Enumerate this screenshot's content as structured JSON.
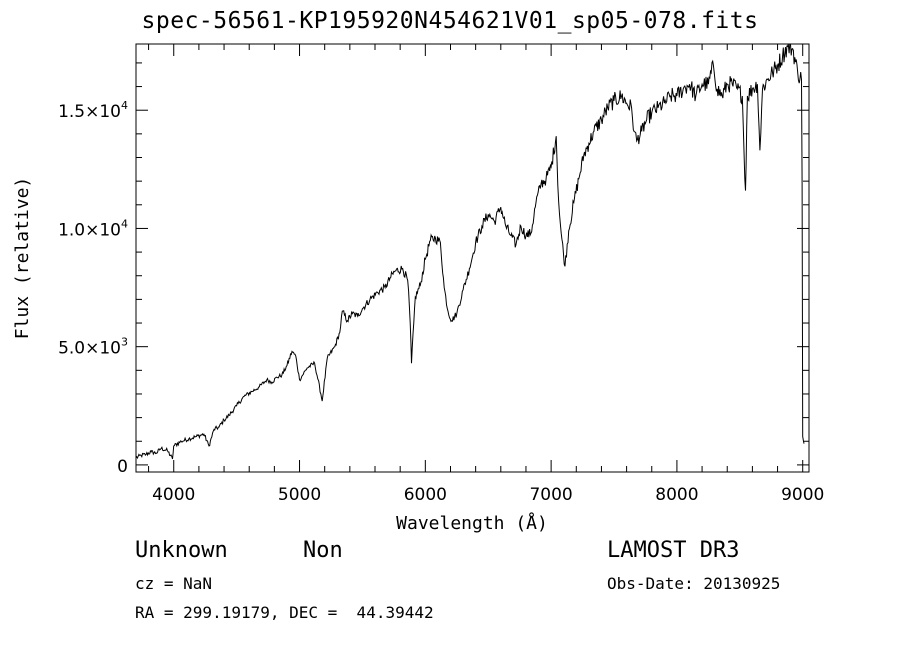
{
  "chart_data": {
    "type": "line",
    "title": "spec-56561-KP195920N454621V01_sp05-078.fits",
    "xlabel": "Wavelength (Å)",
    "ylabel": "Flux (relative)",
    "xlim": [
      3700,
      9050
    ],
    "ylim": [
      -300,
      17800
    ],
    "xticks": [
      4000,
      5000,
      6000,
      7000,
      8000,
      9000
    ],
    "yticks": [
      {
        "value": 0,
        "label": "0"
      },
      {
        "value": 5000,
        "label": "5.0×10",
        "exp": "3"
      },
      {
        "value": 10000,
        "label": "1.0×10",
        "exp": "4"
      },
      {
        "value": 15000,
        "label": "1.5×10",
        "exp": "4"
      }
    ],
    "series": [
      {
        "name": "flux",
        "points": [
          [
            3700,
            300
          ],
          [
            3740,
            400
          ],
          [
            3780,
            450
          ],
          [
            3820,
            550
          ],
          [
            3860,
            500
          ],
          [
            3900,
            700
          ],
          [
            3950,
            600
          ],
          [
            3990,
            250
          ],
          [
            4000,
            800
          ],
          [
            4060,
            1000
          ],
          [
            4120,
            1100
          ],
          [
            4180,
            1200
          ],
          [
            4240,
            1300
          ],
          [
            4280,
            800
          ],
          [
            4320,
            1500
          ],
          [
            4360,
            1600
          ],
          [
            4400,
            1900
          ],
          [
            4440,
            2100
          ],
          [
            4500,
            2500
          ],
          [
            4560,
            2900
          ],
          [
            4620,
            3100
          ],
          [
            4680,
            3300
          ],
          [
            4740,
            3600
          ],
          [
            4780,
            3500
          ],
          [
            4820,
            3700
          ],
          [
            4860,
            3800
          ],
          [
            4900,
            4200
          ],
          [
            4940,
            4800
          ],
          [
            4970,
            4600
          ],
          [
            5000,
            3600
          ],
          [
            5060,
            4100
          ],
          [
            5120,
            4300
          ],
          [
            5170,
            3000
          ],
          [
            5180,
            2700
          ],
          [
            5220,
            4500
          ],
          [
            5280,
            5000
          ],
          [
            5320,
            5600
          ],
          [
            5340,
            6500
          ],
          [
            5380,
            6100
          ],
          [
            5420,
            6400
          ],
          [
            5460,
            6300
          ],
          [
            5500,
            6600
          ],
          [
            5560,
            7000
          ],
          [
            5620,
            7300
          ],
          [
            5680,
            7500
          ],
          [
            5720,
            7900
          ],
          [
            5760,
            8200
          ],
          [
            5820,
            8300
          ],
          [
            5860,
            7800
          ],
          [
            5880,
            6000
          ],
          [
            5890,
            4300
          ],
          [
            5920,
            7100
          ],
          [
            5960,
            7600
          ],
          [
            6000,
            8700
          ],
          [
            6040,
            9500
          ],
          [
            6080,
            9600
          ],
          [
            6120,
            9400
          ],
          [
            6150,
            7500
          ],
          [
            6180,
            6500
          ],
          [
            6210,
            6100
          ],
          [
            6250,
            6400
          ],
          [
            6300,
            7400
          ],
          [
            6350,
            8300
          ],
          [
            6400,
            9400
          ],
          [
            6450,
            10100
          ],
          [
            6500,
            10600
          ],
          [
            6550,
            10300
          ],
          [
            6600,
            10900
          ],
          [
            6640,
            10100
          ],
          [
            6680,
            9700
          ],
          [
            6720,
            9300
          ],
          [
            6760,
            10100
          ],
          [
            6800,
            9700
          ],
          [
            6840,
            9800
          ],
          [
            6880,
            11100
          ],
          [
            6920,
            11900
          ],
          [
            6960,
            12100
          ],
          [
            7000,
            12600
          ],
          [
            7040,
            13900
          ],
          [
            7060,
            11100
          ],
          [
            7080,
            9800
          ],
          [
            7110,
            8400
          ],
          [
            7140,
            9900
          ],
          [
            7180,
            11100
          ],
          [
            7220,
            12100
          ],
          [
            7260,
            13100
          ],
          [
            7300,
            13600
          ],
          [
            7340,
            14100
          ],
          [
            7400,
            14600
          ],
          [
            7450,
            15100
          ],
          [
            7500,
            15400
          ],
          [
            7560,
            15600
          ],
          [
            7600,
            15300
          ],
          [
            7640,
            15100
          ],
          [
            7660,
            14100
          ],
          [
            7680,
            13700
          ],
          [
            7720,
            14100
          ],
          [
            7760,
            14600
          ],
          [
            7800,
            14900
          ],
          [
            7850,
            15100
          ],
          [
            7900,
            15300
          ],
          [
            7950,
            15600
          ],
          [
            8000,
            15600
          ],
          [
            8050,
            15900
          ],
          [
            8100,
            16100
          ],
          [
            8150,
            15600
          ],
          [
            8200,
            16100
          ],
          [
            8250,
            16100
          ],
          [
            8290,
            16900
          ],
          [
            8320,
            15900
          ],
          [
            8360,
            15600
          ],
          [
            8400,
            16100
          ],
          [
            8440,
            16100
          ],
          [
            8480,
            15900
          ],
          [
            8520,
            15600
          ],
          [
            8540,
            12100
          ],
          [
            8545,
            11600
          ],
          [
            8560,
            15600
          ],
          [
            8600,
            15900
          ],
          [
            8640,
            16100
          ],
          [
            8660,
            13300
          ],
          [
            8680,
            15900
          ],
          [
            8720,
            16300
          ],
          [
            8760,
            16600
          ],
          [
            8800,
            16900
          ],
          [
            8840,
            17300
          ],
          [
            8880,
            17700
          ],
          [
            8920,
            17600
          ],
          [
            8960,
            16600
          ],
          [
            8990,
            16300
          ],
          [
            8995,
            11900
          ],
          [
            9000,
            1200
          ],
          [
            9010,
            900
          ]
        ]
      }
    ]
  },
  "annotations": {
    "object_class": "Unknown",
    "object_subclass": "Non",
    "cz": "cz = NaN",
    "coords": "RA = 299.19179, DEC =  44.39442",
    "survey": "LAMOST DR3",
    "obs_date": "Obs-Date: 20130925"
  }
}
